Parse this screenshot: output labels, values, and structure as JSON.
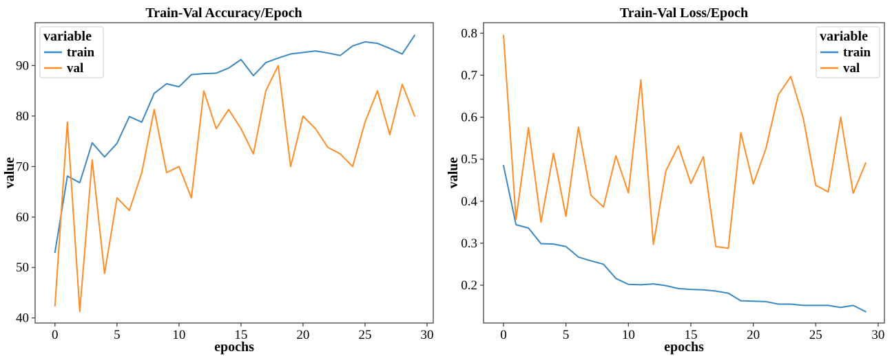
{
  "colors": {
    "train": "#3a87c1",
    "val": "#ff8c26"
  },
  "chart_data": [
    {
      "type": "line",
      "title": "Train-Val Accuracy/Epoch",
      "xlabel": "epochs",
      "ylabel": "value",
      "xlim": [
        -1.6,
        30.5
      ],
      "ylim": [
        39,
        98.5
      ],
      "xticks": [
        0,
        5,
        10,
        15,
        20,
        25,
        30
      ],
      "yticks": [
        40,
        50,
        60,
        70,
        80,
        90
      ],
      "legend": {
        "title": "variable",
        "placement": "top-left"
      },
      "x": [
        0,
        1,
        2,
        3,
        4,
        5,
        6,
        7,
        8,
        9,
        10,
        11,
        12,
        13,
        14,
        15,
        16,
        17,
        18,
        19,
        20,
        21,
        22,
        23,
        24,
        25,
        26,
        27,
        28,
        29
      ],
      "series": [
        {
          "name": "train",
          "color": "#3a87c1",
          "values": [
            53.0,
            68.1,
            66.8,
            74.7,
            71.9,
            74.6,
            79.9,
            78.8,
            84.5,
            86.4,
            85.8,
            88.2,
            88.4,
            88.5,
            89.5,
            91.2,
            88.0,
            90.6,
            91.5,
            92.3,
            92.6,
            92.9,
            92.5,
            92.0,
            93.9,
            94.7,
            94.4,
            93.4,
            92.3,
            96.0
          ]
        },
        {
          "name": "val",
          "color": "#ff8c26",
          "values": [
            42.4,
            78.8,
            41.3,
            71.3,
            48.8,
            63.8,
            61.3,
            68.8,
            81.3,
            68.8,
            70.0,
            63.8,
            85.0,
            77.5,
            81.3,
            77.5,
            72.5,
            85.0,
            90.0,
            70.0,
            80.0,
            77.5,
            73.8,
            72.5,
            70.0,
            78.8,
            85.0,
            76.3,
            86.3,
            80.0
          ]
        }
      ]
    },
    {
      "type": "line",
      "title": "Train-Val Loss/Epoch",
      "xlabel": "epochs",
      "ylabel": "value",
      "xlim": [
        -1.6,
        30.5
      ],
      "ylim": [
        0.11,
        0.825
      ],
      "xticks": [
        0,
        5,
        10,
        15,
        20,
        25,
        30
      ],
      "yticks": [
        0.2,
        0.3,
        0.4,
        0.5,
        0.6,
        0.7,
        0.8
      ],
      "legend": {
        "title": "variable",
        "placement": "top-right"
      },
      "x": [
        0,
        1,
        2,
        3,
        4,
        5,
        6,
        7,
        8,
        9,
        10,
        11,
        12,
        13,
        14,
        15,
        16,
        17,
        18,
        19,
        20,
        21,
        22,
        23,
        24,
        25,
        26,
        27,
        28,
        29
      ],
      "series": [
        {
          "name": "train",
          "color": "#3a87c1",
          "values": [
            0.485,
            0.344,
            0.336,
            0.299,
            0.298,
            0.292,
            0.267,
            0.258,
            0.25,
            0.216,
            0.202,
            0.201,
            0.203,
            0.199,
            0.192,
            0.19,
            0.189,
            0.186,
            0.181,
            0.163,
            0.162,
            0.161,
            0.155,
            0.155,
            0.152,
            0.152,
            0.152,
            0.147,
            0.152,
            0.137
          ]
        },
        {
          "name": "val",
          "color": "#ff8c26",
          "values": [
            0.795,
            0.357,
            0.575,
            0.35,
            0.514,
            0.364,
            0.576,
            0.414,
            0.386,
            0.508,
            0.42,
            0.689,
            0.297,
            0.472,
            0.532,
            0.442,
            0.506,
            0.292,
            0.288,
            0.563,
            0.441,
            0.524,
            0.653,
            0.697,
            0.598,
            0.438,
            0.422,
            0.6,
            0.419,
            0.491
          ]
        }
      ]
    }
  ]
}
